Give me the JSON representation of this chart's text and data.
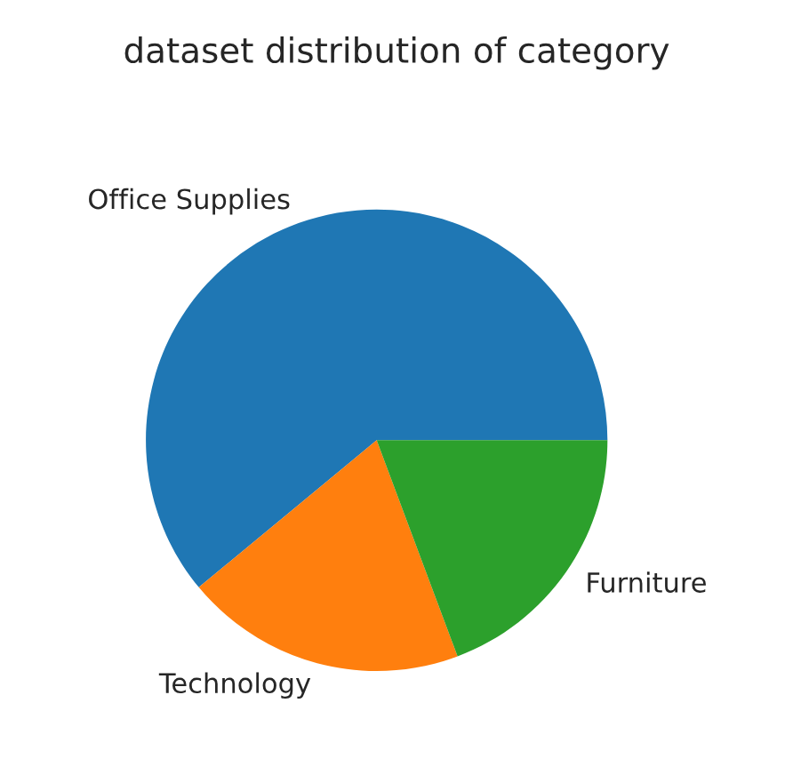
{
  "chart_data": {
    "type": "pie",
    "title": "dataset distribution of category",
    "categories": [
      "Office Supplies",
      "Technology",
      "Furniture"
    ],
    "values": [
      61.0,
      19.7,
      19.3
    ],
    "colors": [
      "#1f77b4",
      "#ff7f0e",
      "#2ca02c"
    ]
  }
}
